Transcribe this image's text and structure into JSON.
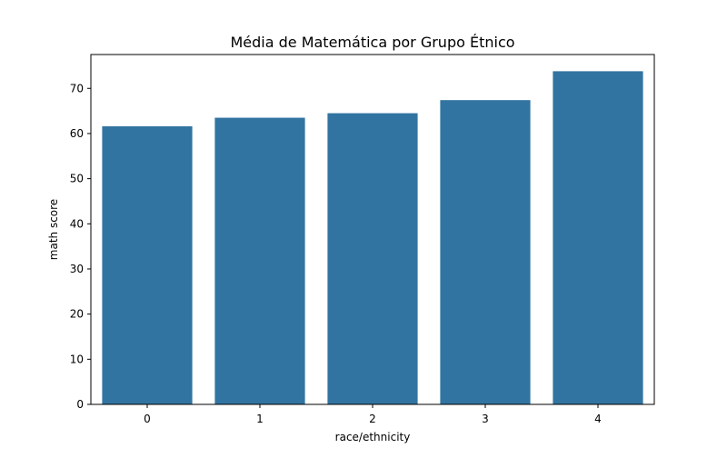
{
  "chart_data": {
    "type": "bar",
    "title": "Média de Matemática por Grupo Étnico",
    "xlabel": "race/ethnicity",
    "ylabel": "math score",
    "categories": [
      "0",
      "1",
      "2",
      "3",
      "4"
    ],
    "values": [
      61.6,
      63.5,
      64.5,
      67.4,
      73.8
    ],
    "ylim": [
      0,
      77.5
    ],
    "yticks": [
      0,
      10,
      20,
      30,
      40,
      50,
      60,
      70
    ],
    "bar_color": "#3274a1",
    "grid": false,
    "legend": "none"
  }
}
